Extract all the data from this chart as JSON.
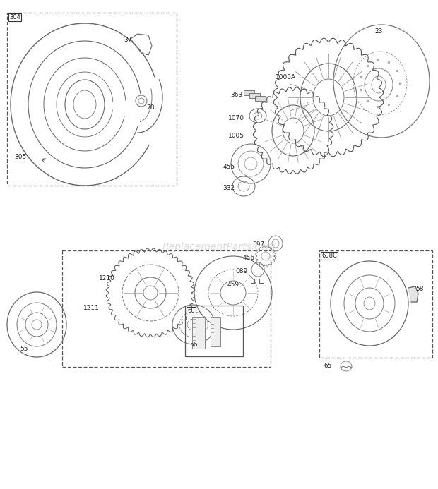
{
  "background_color": "#ffffff",
  "watermark": "ReplacementParts.com",
  "fig_w": 6.2,
  "fig_h": 6.93,
  "dpi": 100,
  "lc": "#555555",
  "lc2": "#888888"
}
